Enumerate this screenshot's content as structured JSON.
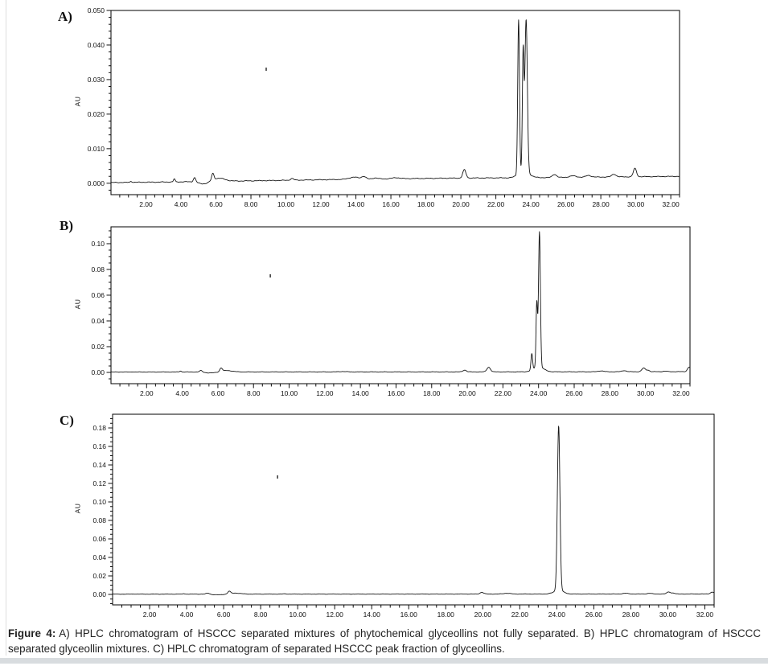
{
  "page": {
    "background": "#ffffff",
    "left_rule_color": "#dedede",
    "bottom_bar_color": "#d8dcdf"
  },
  "figure": {
    "caption_label": "Figure 4:",
    "caption_text": "A) HPLC chromatogram of HSCCC separated mixtures of phytochemical glyceollins not fully separated. B) HPLC chromatogram of HSCCC separated glyceollin mixtures. C) HPLC chromatogram of separated HSCCC peak fraction of glyceollins."
  },
  "chart_data": [
    {
      "type": "line",
      "panel_label": "A)",
      "ylabel": "AU",
      "trace_color": "#141414",
      "xlim": [
        0,
        32.5
      ],
      "ylim": [
        -0.0033,
        0.05
      ],
      "x_major_ticks": [
        2,
        4,
        6,
        8,
        10,
        12,
        14,
        16,
        18,
        20,
        22,
        24,
        26,
        28,
        30,
        32
      ],
      "x_tick_decimals": 2,
      "x_minor_step": 0.5,
      "y_ticks": [
        {
          "v": 0.0,
          "label": "0.000"
        },
        {
          "v": 0.01,
          "label": "0.010"
        },
        {
          "v": 0.02,
          "label": "0.020"
        },
        {
          "v": 0.03,
          "label": "0.030"
        },
        {
          "v": 0.04,
          "label": "0.040"
        },
        {
          "v": 0.05,
          "label": "0.050"
        }
      ],
      "y_minor_step": 0.002,
      "noise_au": 0.00012,
      "baseline": [
        [
          0,
          0.0002
        ],
        [
          4,
          0.0004
        ],
        [
          8,
          0.0007
        ],
        [
          12,
          0.001
        ],
        [
          16,
          0.0013
        ],
        [
          20,
          0.0015
        ],
        [
          24,
          0.0016
        ],
        [
          28,
          0.0018
        ],
        [
          32.5,
          0.002
        ]
      ],
      "peaks": [
        [
          1.15,
          0.0003,
          0.05
        ],
        [
          3.62,
          0.0009,
          0.045
        ],
        [
          4.78,
          0.0013,
          0.07
        ],
        [
          5.3,
          -0.0007,
          0.3
        ],
        [
          5.82,
          0.0019,
          0.065
        ],
        [
          6.15,
          0.0009,
          0.35
        ],
        [
          10.35,
          0.0005,
          0.09
        ],
        [
          13.9,
          0.0006,
          0.3
        ],
        [
          14.45,
          0.0007,
          0.12
        ],
        [
          15.1,
          0.0003,
          0.15
        ],
        [
          16.3,
          0.0003,
          0.2
        ],
        [
          20.2,
          0.0024,
          0.09
        ],
        [
          23.3,
          0.0445,
          0.05
        ],
        [
          23.56,
          0.034,
          0.045
        ],
        [
          23.73,
          0.044,
          0.07
        ],
        [
          23.6,
          0.002,
          0.3
        ],
        [
          25.35,
          0.0009,
          0.12
        ],
        [
          26.4,
          0.0004,
          0.2
        ],
        [
          27.3,
          0.0005,
          0.15
        ],
        [
          28.75,
          0.0008,
          0.12
        ],
        [
          29.95,
          0.0024,
          0.09
        ]
      ],
      "artifact_dot": {
        "x": 8.87,
        "au": 0.033
      }
    },
    {
      "type": "line",
      "panel_label": "B)",
      "ylabel": "AU",
      "trace_color": "#141414",
      "xlim": [
        0,
        32.5
      ],
      "ylim": [
        -0.00875,
        0.1131
      ],
      "x_major_ticks": [
        2,
        4,
        6,
        8,
        10,
        12,
        14,
        16,
        18,
        20,
        22,
        24,
        26,
        28,
        30,
        32
      ],
      "x_tick_decimals": 2,
      "x_minor_step": 0.5,
      "y_ticks": [
        {
          "v": 0.0,
          "label": "0.00"
        },
        {
          "v": 0.02,
          "label": "0.02"
        },
        {
          "v": 0.04,
          "label": "0.04"
        },
        {
          "v": 0.06,
          "label": "0.06"
        },
        {
          "v": 0.08,
          "label": "0.08"
        },
        {
          "v": 0.1,
          "label": "0.10"
        }
      ],
      "y_minor_step": 0.005,
      "noise_au": 0.0002,
      "baseline": [
        [
          0,
          0.0003
        ],
        [
          10,
          0.0004
        ],
        [
          20,
          0.0004
        ],
        [
          28,
          0.0005
        ],
        [
          32.5,
          0.0006
        ]
      ],
      "peaks": [
        [
          1.2,
          0.0002,
          0.05
        ],
        [
          3.9,
          0.0008,
          0.05
        ],
        [
          5.05,
          0.0012,
          0.08
        ],
        [
          5.6,
          -0.0008,
          0.3
        ],
        [
          6.18,
          0.0026,
          0.07
        ],
        [
          6.5,
          0.0011,
          0.3
        ],
        [
          13.0,
          0.0003,
          0.2
        ],
        [
          19.85,
          0.0014,
          0.1
        ],
        [
          21.2,
          0.0036,
          0.1
        ],
        [
          23.62,
          0.0125,
          0.045
        ],
        [
          23.9,
          0.05,
          0.042
        ],
        [
          24.05,
          0.105,
          0.052
        ],
        [
          24.0,
          0.004,
          0.28
        ],
        [
          27.5,
          0.0007,
          0.15
        ],
        [
          28.8,
          0.0009,
          0.12
        ],
        [
          29.9,
          0.0028,
          0.1
        ],
        [
          30.15,
          0.0012,
          0.08
        ],
        [
          31.1,
          0.0004,
          0.1
        ],
        [
          32.45,
          0.0035,
          0.09
        ]
      ],
      "artifact_dot": {
        "x": 8.94,
        "au": 0.075
      }
    },
    {
      "type": "line",
      "panel_label": "C)",
      "ylabel": "AU",
      "trace_color": "#141414",
      "xlim": [
        0,
        32.5
      ],
      "ylim": [
        -0.0113,
        0.1948
      ],
      "x_major_ticks": [
        2,
        4,
        6,
        8,
        10,
        12,
        14,
        16,
        18,
        20,
        22,
        24,
        26,
        28,
        30,
        32
      ],
      "x_tick_decimals": 2,
      "x_minor_step": 0.5,
      "y_ticks": [
        {
          "v": 0.0,
          "label": "0.00"
        },
        {
          "v": 0.02,
          "label": "0.02"
        },
        {
          "v": 0.04,
          "label": "0.04"
        },
        {
          "v": 0.06,
          "label": "0.06"
        },
        {
          "v": 0.08,
          "label": "0.08"
        },
        {
          "v": 0.1,
          "label": "0.10"
        },
        {
          "v": 0.12,
          "label": "0.12"
        },
        {
          "v": 0.14,
          "label": "0.14"
        },
        {
          "v": 0.16,
          "label": "0.16"
        },
        {
          "v": 0.18,
          "label": "0.18"
        }
      ],
      "y_minor_step": 0.005,
      "noise_au": 0.00025,
      "baseline": [
        [
          0,
          0.0003
        ],
        [
          16,
          0.0004
        ],
        [
          32.5,
          0.0005
        ]
      ],
      "peaks": [
        [
          1.2,
          0.0002,
          0.05
        ],
        [
          3.85,
          0.0006,
          0.05
        ],
        [
          5.15,
          0.0012,
          0.09
        ],
        [
          5.7,
          -0.0008,
          0.3
        ],
        [
          6.3,
          0.0026,
          0.07
        ],
        [
          6.6,
          0.0011,
          0.3
        ],
        [
          9.3,
          0.0003,
          0.1
        ],
        [
          19.95,
          0.0018,
          0.1
        ],
        [
          21.3,
          0.0008,
          0.18
        ],
        [
          24.1,
          0.178,
          0.068
        ],
        [
          24.1,
          0.004,
          0.25
        ],
        [
          27.7,
          0.0007,
          0.15
        ],
        [
          29.0,
          0.0007,
          0.12
        ],
        [
          30.05,
          0.0022,
          0.1
        ],
        [
          30.3,
          0.001,
          0.08
        ],
        [
          32.4,
          0.002,
          0.1
        ]
      ],
      "artifact_dot": {
        "x": 8.91,
        "au": 0.127
      }
    }
  ]
}
